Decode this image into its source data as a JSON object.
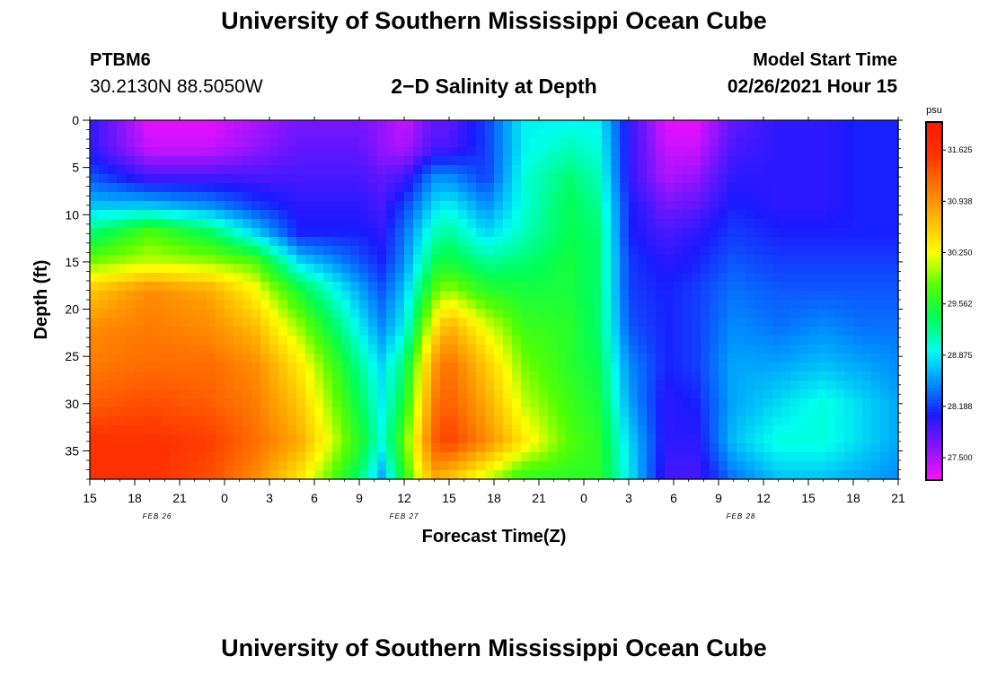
{
  "header": {
    "title": "University of Southern Mississippi Ocean Cube",
    "footer_title": "University of Southern Mississippi Ocean Cube",
    "station_id": "PTBM6",
    "station_coords": "30.2130N 88.5050W",
    "plot_title": "2−D Salinity at Depth",
    "model_label": "Model Start Time",
    "model_time": "02/26/2021 Hour 15"
  },
  "chart_data": {
    "type": "heatmap",
    "title": "2-D Salinity at Depth",
    "xlabel": "Forecast Time(Z)",
    "ylabel": "Depth (ft)",
    "x_range_hours": [
      0,
      54
    ],
    "y_range_ft": [
      0,
      38
    ],
    "x_tick_labels": [
      "15",
      "18",
      "21",
      "0",
      "3",
      "6",
      "9",
      "12",
      "15",
      "18",
      "21",
      "0",
      "3",
      "6",
      "9",
      "12",
      "15",
      "18",
      "21"
    ],
    "y_ticks": [
      0,
      5,
      10,
      15,
      20,
      25,
      30,
      35
    ],
    "date_labels": [
      {
        "label": "FEB 26",
        "hour": 4.5
      },
      {
        "label": "FEB 27",
        "hour": 21
      },
      {
        "label": "FEB 28",
        "hour": 43.5
      }
    ],
    "colorbar": {
      "unit": "psu",
      "min": 27.2,
      "max": 32.0,
      "tick_labels": [
        "31.625",
        "30.938",
        "30.250",
        "29.562",
        "28.875",
        "28.188",
        "27.500"
      ],
      "tick_values": [
        31.625,
        30.938,
        30.25,
        29.562,
        28.875,
        28.188,
        27.5
      ],
      "colors": [
        "#ff10ff",
        "#8a14ff",
        "#1a1aff",
        "#0090ff",
        "#00ffee",
        "#00ff55",
        "#55ff00",
        "#ffff00",
        "#ffbb00",
        "#ff7700",
        "#ff3300",
        "#ff1800"
      ]
    },
    "x_hours": [
      0,
      4,
      8,
      11,
      14,
      18,
      19.5,
      21,
      23,
      24,
      26.5,
      29,
      32,
      34,
      36,
      38.5,
      40.5,
      43,
      46,
      49,
      51.5,
      54
    ],
    "depths_ft": [
      0,
      3,
      6,
      9,
      12,
      15,
      18,
      22,
      26,
      30,
      34,
      38
    ],
    "salinity": [
      [
        28.0,
        27.3,
        27.3,
        27.5,
        27.7,
        27.7,
        27.6,
        27.4,
        27.8,
        27.8,
        28.2,
        28.9,
        28.9,
        28.9,
        28.0,
        27.3,
        27.3,
        27.8,
        28.0,
        28.0,
        28.1,
        28.1
      ],
      [
        28.0,
        27.4,
        27.4,
        27.6,
        27.8,
        27.8,
        27.6,
        27.5,
        27.9,
        27.9,
        28.2,
        28.9,
        29.1,
        29.0,
        28.0,
        27.4,
        27.4,
        27.9,
        28.0,
        28.0,
        28.1,
        28.1
      ],
      [
        28.3,
        27.9,
        27.9,
        27.9,
        27.9,
        27.9,
        27.8,
        27.9,
        28.5,
        28.5,
        28.2,
        29.0,
        29.3,
        29.1,
        28.0,
        27.5,
        27.6,
        28.0,
        28.0,
        28.0,
        28.1,
        28.1
      ],
      [
        28.7,
        28.7,
        28.5,
        28.2,
        28.0,
        28.0,
        27.9,
        28.2,
        28.8,
        28.9,
        28.5,
        29.0,
        29.4,
        29.2,
        28.1,
        27.7,
        27.8,
        28.1,
        28.0,
        28.0,
        28.1,
        28.1
      ],
      [
        29.3,
        29.8,
        29.4,
        28.8,
        28.1,
        28.1,
        28.0,
        28.4,
        29.1,
        29.2,
        28.8,
        29.1,
        29.4,
        29.3,
        28.1,
        27.9,
        28.0,
        28.2,
        28.1,
        28.1,
        28.1,
        28.1
      ],
      [
        29.9,
        30.1,
        30.0,
        29.8,
        28.8,
        28.3,
        28.1,
        28.5,
        29.4,
        29.5,
        29.2,
        29.3,
        29.5,
        29.3,
        28.2,
        28.0,
        28.1,
        28.3,
        28.2,
        28.2,
        28.2,
        28.2
      ],
      [
        30.6,
        31.0,
        30.8,
        30.3,
        29.5,
        28.6,
        28.3,
        28.7,
        29.8,
        30.0,
        29.6,
        29.5,
        29.5,
        29.3,
        28.2,
        28.1,
        28.2,
        28.4,
        28.3,
        28.3,
        28.3,
        28.3
      ],
      [
        31.0,
        31.1,
        31.0,
        30.7,
        30.0,
        28.9,
        28.5,
        28.9,
        30.4,
        30.8,
        30.2,
        29.7,
        29.6,
        29.3,
        28.3,
        28.1,
        28.2,
        28.5,
        28.4,
        28.5,
        28.4,
        28.4
      ],
      [
        31.1,
        31.2,
        31.2,
        31.0,
        30.4,
        29.2,
        28.8,
        29.3,
        30.9,
        31.2,
        30.6,
        29.9,
        29.6,
        29.4,
        28.5,
        28.1,
        28.2,
        28.6,
        28.6,
        28.7,
        28.6,
        28.5
      ],
      [
        31.3,
        31.4,
        31.3,
        31.1,
        30.6,
        29.4,
        28.9,
        29.5,
        31.1,
        31.3,
        30.8,
        30.1,
        29.7,
        29.5,
        28.6,
        28.0,
        28.1,
        28.6,
        28.8,
        29.0,
        28.8,
        28.6
      ],
      [
        31.6,
        31.6,
        31.5,
        31.2,
        30.8,
        29.6,
        29.0,
        29.8,
        31.3,
        31.5,
        31.0,
        30.4,
        29.8,
        29.6,
        28.8,
        28.0,
        28.0,
        28.7,
        29.0,
        29.0,
        28.8,
        28.6
      ],
      [
        31.6,
        31.6,
        31.4,
        31.0,
        30.4,
        29.3,
        28.6,
        29.6,
        30.8,
        30.6,
        30.1,
        29.6,
        29.6,
        29.6,
        28.9,
        27.9,
        27.9,
        28.4,
        28.7,
        28.7,
        28.6,
        28.5
      ]
    ]
  }
}
